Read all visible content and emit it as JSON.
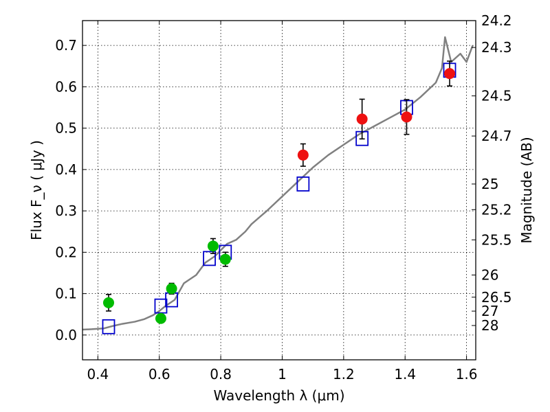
{
  "chart_data": {
    "type": "scatter",
    "xlabel": "Wavelength  λ (μm)",
    "ylabel": "Flux  F_ν  ( μJy )",
    "y2label": "Magnitude (AB)",
    "xlim": [
      0.35,
      1.63
    ],
    "ylim": [
      -0.06,
      0.76
    ],
    "grid": true,
    "x_ticks": [
      0.4,
      0.6,
      0.8,
      1.0,
      1.2,
      1.4,
      1.6
    ],
    "x_tick_labels": [
      "0.4",
      "0.6",
      "0.8",
      "1",
      "1.2",
      "1.4",
      "1.6"
    ],
    "y_ticks": [
      0.0,
      0.1,
      0.2,
      0.3,
      0.4,
      0.5,
      0.6,
      0.7
    ],
    "y_tick_labels": [
      "0.0",
      "0.1",
      "0.2",
      "0.3",
      "0.4",
      "0.5",
      "0.6",
      "0.7"
    ],
    "y2_ticks": [
      {
        "label": "24.2",
        "flux": 0.76
      },
      {
        "label": "24.3",
        "flux": 0.695
      },
      {
        "label": "24.5",
        "flux": 0.578
      },
      {
        "label": "24.7",
        "flux": 0.481
      },
      {
        "label": "25",
        "flux": 0.365
      },
      {
        "label": "25.2",
        "flux": 0.303
      },
      {
        "label": "25.5",
        "flux": 0.23
      },
      {
        "label": "26",
        "flux": 0.145
      },
      {
        "label": "26.5",
        "flux": 0.0914
      },
      {
        "label": "27",
        "flux": 0.0577
      },
      {
        "label": "28",
        "flux": 0.0229
      }
    ],
    "series": [
      {
        "marker": "line",
        "color": "#808080",
        "x": [
          0.35,
          0.38,
          0.42,
          0.45,
          0.48,
          0.52,
          0.55,
          0.58,
          0.6,
          0.62,
          0.65,
          0.68,
          0.7,
          0.72,
          0.75,
          0.78,
          0.8,
          0.82,
          0.85,
          0.88,
          0.9,
          0.95,
          1.0,
          1.05,
          1.1,
          1.15,
          1.2,
          1.25,
          1.3,
          1.35,
          1.4,
          1.45,
          1.5,
          1.52,
          1.53,
          1.55,
          1.58,
          1.6,
          1.62
        ],
        "y": [
          0.013,
          0.014,
          0.016,
          0.022,
          0.027,
          0.032,
          0.038,
          0.048,
          0.058,
          0.07,
          0.085,
          0.125,
          0.135,
          0.145,
          0.175,
          0.19,
          0.205,
          0.22,
          0.23,
          0.25,
          0.268,
          0.3,
          0.335,
          0.37,
          0.405,
          0.435,
          0.46,
          0.485,
          0.505,
          0.525,
          0.545,
          0.575,
          0.61,
          0.645,
          0.72,
          0.66,
          0.68,
          0.66,
          0.7
        ]
      },
      {
        "marker": "open-square",
        "color": "#0000cc",
        "x": [
          0.435,
          0.605,
          0.64,
          0.763,
          0.815,
          1.068,
          1.26,
          1.405,
          1.545
        ],
        "y": [
          0.02,
          0.07,
          0.085,
          0.185,
          0.2,
          0.365,
          0.475,
          0.55,
          0.64
        ]
      },
      {
        "marker": "filled-circle",
        "color": "#00bb00",
        "x": [
          0.435,
          0.605,
          0.64,
          0.775,
          0.815
        ],
        "y": [
          0.078,
          0.04,
          0.112,
          0.215,
          0.183
        ],
        "err": [
          0.02,
          0.0,
          0.013,
          0.018,
          0.017
        ]
      },
      {
        "marker": "filled-circle",
        "color": "#ee1111",
        "x": [
          1.068,
          1.26,
          1.405,
          1.545
        ],
        "y": [
          0.435,
          0.522,
          0.527,
          0.632
        ],
        "err": [
          0.027,
          0.048,
          0.042,
          0.03
        ]
      }
    ]
  }
}
